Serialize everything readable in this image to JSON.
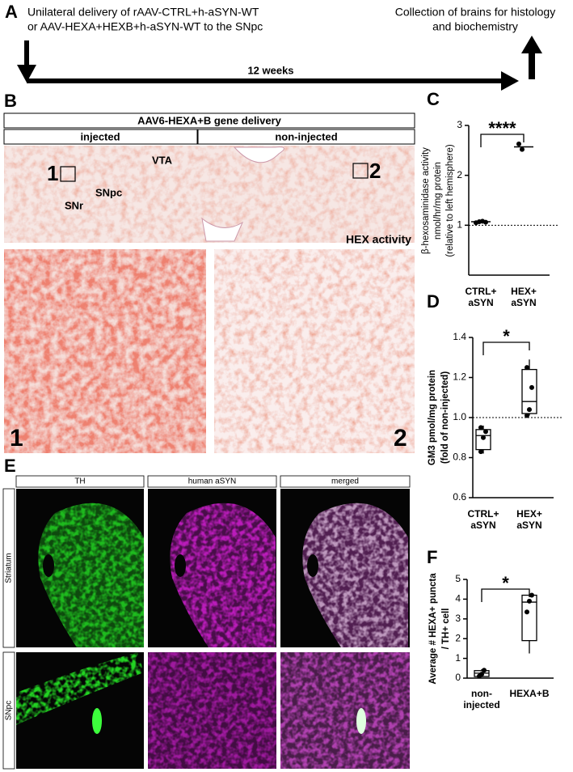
{
  "panel_a": {
    "label": "A",
    "left_text": [
      "Unilateral delivery of rAAV-CTRL+h-aSYN-WT",
      "or AAV-HEXA+HEXB+h-aSYN-WT to the SNpc"
    ],
    "right_text": [
      "Collection of brains for histology",
      "and biochemistry"
    ],
    "duration": "12 weeks"
  },
  "panel_b": {
    "label": "B",
    "header": "AAV6-HEXA+B gene delivery",
    "columns": [
      "injected",
      "non-injected"
    ],
    "regions": [
      "SNr",
      "SNpc",
      "VTA"
    ],
    "boxes": [
      "1",
      "2"
    ],
    "stain": "HEX activity",
    "insets": [
      "1",
      "2"
    ]
  },
  "panel_e": {
    "label": "E",
    "columns": [
      "TH",
      "human aSYN",
      "merged"
    ],
    "rows": [
      "Striatum",
      "SNpc"
    ]
  },
  "chart_data": [
    {
      "panel": "C",
      "type": "dot",
      "ylabel": [
        "β-hexosaminidase activity",
        "nmol/hr/mg protein",
        "(relative to left hemisphere)"
      ],
      "categories": [
        [
          "CTRL+",
          "aSYN"
        ],
        [
          "HEX+",
          "aSYN"
        ]
      ],
      "groups": [
        {
          "points": [
            1.05,
            1.07,
            1.08,
            1.06
          ],
          "mean": 1.07
        },
        {
          "points": [
            2.63,
            2.52
          ],
          "mean": 2.57
        }
      ],
      "ylim": [
        0,
        3
      ],
      "yticks": [
        1,
        2,
        3
      ],
      "reference_line": 1,
      "significance": "****"
    },
    {
      "panel": "D",
      "type": "box",
      "ylabel": [
        "GM3 pmol/mg protein",
        "(fold of non-injected)"
      ],
      "categories": [
        [
          "CTRL+",
          "aSYN"
        ],
        [
          "HEX+",
          "aSYN"
        ]
      ],
      "groups": [
        {
          "min": 0.82,
          "q1": 0.84,
          "median": 0.91,
          "q3": 0.94,
          "max": 0.96,
          "points": [
            0.83,
            0.9,
            0.93,
            0.95
          ]
        },
        {
          "min": 1.01,
          "q1": 1.02,
          "median": 1.08,
          "q3": 1.24,
          "max": 1.29,
          "points": [
            1.01,
            1.04,
            1.15,
            1.25
          ]
        }
      ],
      "ylim": [
        0.6,
        1.4
      ],
      "yticks": [
        0.6,
        0.8,
        {
          "value": 1.0,
          "label": "1.0"
        },
        1.2,
        1.4
      ],
      "reference_line": 1.0,
      "significance": "*"
    },
    {
      "panel": "F",
      "type": "box",
      "ylabel": [
        "Average # HEXA+ puncta",
        "/ TH+ cell"
      ],
      "categories": [
        [
          "non-",
          "injected"
        ],
        [
          "HEXA+B"
        ]
      ],
      "groups": [
        {
          "min": 0.05,
          "q1": 0.08,
          "median": 0.25,
          "q3": 0.38,
          "max": 0.45,
          "points": [
            0.1,
            0.2,
            0.4
          ]
        },
        {
          "min": 1.25,
          "q1": 1.9,
          "median": 3.85,
          "q3": 4.2,
          "max": 4.25,
          "points": [
            3.35,
            3.9,
            4.2
          ]
        }
      ],
      "ylim": [
        0,
        5
      ],
      "yticks": [
        0,
        1,
        2,
        3,
        4,
        5
      ],
      "significance": "*"
    }
  ]
}
